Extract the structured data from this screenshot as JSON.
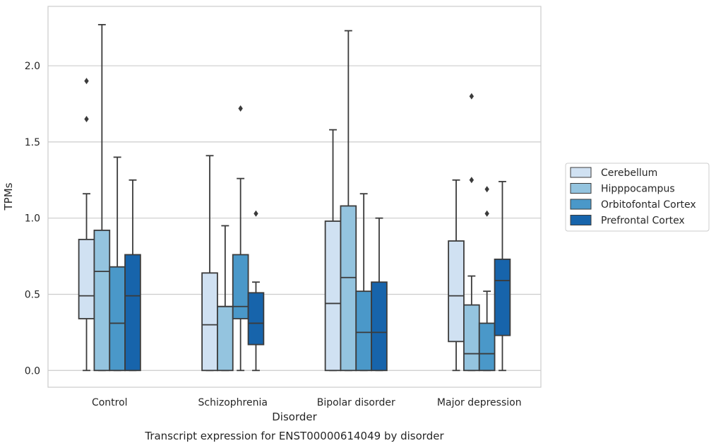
{
  "chart_data": {
    "type": "box",
    "title": "",
    "caption": "Transcript expression for ENST00000614049 by disorder",
    "xlabel": "Disorder",
    "ylabel": "TPMs",
    "ylim": [
      -0.11,
      2.39
    ],
    "yticks": [
      "0.0",
      "0.5",
      "1.0",
      "1.5",
      "2.0"
    ],
    "grid": "horizontal",
    "legend_position": "right",
    "categories": [
      "Control",
      "Schizophrenia",
      "Bipolar disorder",
      "Major depression"
    ],
    "series": [
      {
        "name": "Cerebellum",
        "color": "#d0e1f2",
        "boxes": [
          {
            "min": 0.0,
            "q1": 0.34,
            "median": 0.49,
            "q3": 0.86,
            "max": 1.16,
            "outliers": [
              1.65,
              1.9
            ]
          },
          {
            "min": 0.0,
            "q1": 0.0,
            "median": 0.3,
            "q3": 0.64,
            "max": 1.41,
            "outliers": []
          },
          {
            "min": 0.0,
            "q1": 0.0,
            "median": 0.44,
            "q3": 0.98,
            "max": 1.58,
            "outliers": []
          },
          {
            "min": 0.0,
            "q1": 0.19,
            "median": 0.49,
            "q3": 0.85,
            "max": 1.25,
            "outliers": []
          }
        ]
      },
      {
        "name": "Hipppocampus",
        "color": "#94c4df",
        "boxes": [
          {
            "min": 0.0,
            "q1": 0.0,
            "median": 0.65,
            "q3": 0.92,
            "max": 2.27,
            "outliers": []
          },
          {
            "min": 0.0,
            "q1": 0.0,
            "median": 0.42,
            "q3": 0.42,
            "max": 0.95,
            "outliers": []
          },
          {
            "min": 0.0,
            "q1": 0.0,
            "median": 0.61,
            "q3": 1.08,
            "max": 2.23,
            "outliers": []
          },
          {
            "min": 0.0,
            "q1": 0.0,
            "median": 0.11,
            "q3": 0.43,
            "max": 0.62,
            "outliers": [
              1.25,
              1.8
            ]
          }
        ]
      },
      {
        "name": "Orbitofontal Cortex",
        "color": "#4a98c9",
        "boxes": [
          {
            "min": 0.0,
            "q1": 0.0,
            "median": 0.31,
            "q3": 0.68,
            "max": 1.4,
            "outliers": []
          },
          {
            "min": 0.0,
            "q1": 0.34,
            "median": 0.42,
            "q3": 0.76,
            "max": 1.26,
            "outliers": [
              1.72
            ]
          },
          {
            "min": 0.0,
            "q1": 0.0,
            "median": 0.25,
            "q3": 0.52,
            "max": 1.16,
            "outliers": []
          },
          {
            "min": 0.0,
            "q1": 0.0,
            "median": 0.11,
            "q3": 0.31,
            "max": 0.52,
            "outliers": [
              1.03,
              1.19
            ]
          }
        ]
      },
      {
        "name": "Prefrontal Cortex",
        "color": "#1764ab",
        "boxes": [
          {
            "min": 0.0,
            "q1": 0.0,
            "median": 0.49,
            "q3": 0.76,
            "max": 1.25,
            "outliers": []
          },
          {
            "min": 0.0,
            "q1": 0.17,
            "median": 0.31,
            "q3": 0.51,
            "max": 0.58,
            "outliers": [
              1.03
            ]
          },
          {
            "min": 0.0,
            "q1": 0.0,
            "median": 0.25,
            "q3": 0.58,
            "max": 1.0,
            "outliers": []
          },
          {
            "min": 0.0,
            "q1": 0.23,
            "median": 0.59,
            "q3": 0.73,
            "max": 1.24,
            "outliers": []
          }
        ]
      }
    ]
  }
}
